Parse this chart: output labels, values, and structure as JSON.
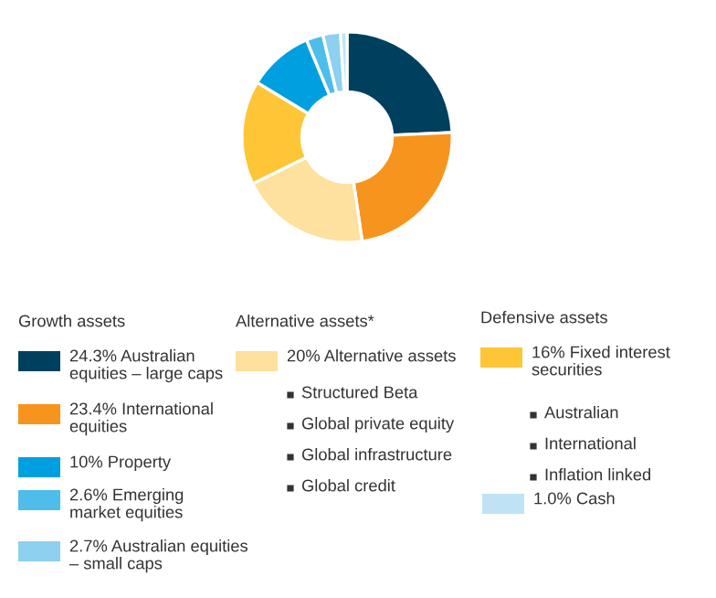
{
  "chart_data": {
    "type": "donut",
    "categories": [
      "24.3% Australian equities – large caps",
      "23.4% International equities",
      "20% Alternative assets",
      "16% Fixed interest securities",
      "10% Property",
      "2.6% Emerging market equities",
      "2.7% Australian equities – small caps",
      "1.0% Cash"
    ],
    "values": [
      24.3,
      23.4,
      20,
      16,
      10,
      2.6,
      2.7,
      1.0
    ],
    "colors": [
      "#00405f",
      "#f7941d",
      "#fee09f",
      "#fec637",
      "#009fdf",
      "#4fbde9",
      "#8dd0ef",
      "#bfe3f5"
    ],
    "legend": "bottom",
    "annotations": [
      "Growth assets",
      "Alternative assets*",
      "Defensive assets",
      "Structured Beta",
      "Global private equity",
      "Global infrastructure",
      "Global credit",
      "Australian",
      "International",
      "Inflation linked"
    ]
  }
}
